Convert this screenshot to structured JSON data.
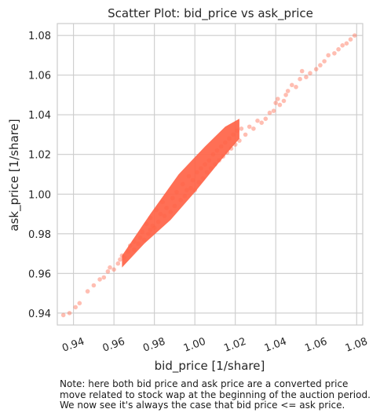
{
  "chart_data": {
    "type": "scatter",
    "title": "Scatter Plot: bid_price vs ask_price",
    "xlabel": "bid_price [1/share]",
    "ylabel": "ask_price [1/share]",
    "xlim": [
      0.932,
      1.083
    ],
    "ylim": [
      0.934,
      1.086
    ],
    "x_ticks": [
      "0.94",
      "0.96",
      "0.98",
      "1.00",
      "1.02",
      "1.04",
      "1.06",
      "1.08"
    ],
    "y_ticks": [
      "0.94",
      "0.96",
      "0.98",
      "1.00",
      "1.02",
      "1.04",
      "1.06",
      "1.08"
    ],
    "grid": true,
    "legend": "none",
    "point_color": "#ff6347",
    "points": [
      [
        0.935,
        0.939
      ],
      [
        0.938,
        0.94
      ],
      [
        0.941,
        0.943
      ],
      [
        0.943,
        0.945
      ],
      [
        0.947,
        0.951
      ],
      [
        0.95,
        0.954
      ],
      [
        0.953,
        0.957
      ],
      [
        0.955,
        0.958
      ],
      [
        0.957,
        0.961
      ],
      [
        0.958,
        0.963
      ],
      [
        0.96,
        0.962
      ],
      [
        0.962,
        0.965
      ],
      [
        0.963,
        0.967
      ],
      [
        0.964,
        0.969
      ],
      [
        0.965,
        0.968
      ],
      [
        0.967,
        0.971
      ],
      [
        0.968,
        0.974
      ],
      [
        0.97,
        0.972
      ],
      [
        0.97,
        0.976
      ],
      [
        0.972,
        0.975
      ],
      [
        0.973,
        0.978
      ],
      [
        0.974,
        0.981
      ],
      [
        0.975,
        0.977
      ],
      [
        0.976,
        0.985
      ],
      [
        0.977,
        0.98
      ],
      [
        0.978,
        0.982
      ],
      [
        0.978,
        0.988
      ],
      [
        0.979,
        0.984
      ],
      [
        0.98,
        0.983
      ],
      [
        0.981,
        0.992
      ],
      [
        0.982,
        0.986
      ],
      [
        0.983,
        0.99
      ],
      [
        0.984,
        0.996
      ],
      [
        0.985,
        0.989
      ],
      [
        0.986,
        0.993
      ],
      [
        0.988,
        0.991
      ],
      [
        0.989,
        0.998
      ],
      [
        0.99,
        0.994
      ],
      [
        0.991,
        1.001
      ],
      [
        0.993,
        0.997
      ],
      [
        0.994,
        1.005
      ],
      [
        0.995,
        0.999
      ],
      [
        0.996,
        1.002
      ],
      [
        0.997,
        1.009
      ],
      [
        0.998,
        1.003
      ],
      [
        0.999,
        1.007
      ],
      [
        1.0,
        1.002
      ],
      [
        1.001,
        1.011
      ],
      [
        1.002,
        1.006
      ],
      [
        1.003,
        1.013
      ],
      [
        1.004,
        1.008
      ],
      [
        1.005,
        1.015
      ],
      [
        1.006,
        1.011
      ],
      [
        1.007,
        1.017
      ],
      [
        1.008,
        1.013
      ],
      [
        1.009,
        1.02
      ],
      [
        1.01,
        1.015
      ],
      [
        1.011,
        1.022
      ],
      [
        1.012,
        1.017
      ],
      [
        1.013,
        1.024
      ],
      [
        1.014,
        1.019
      ],
      [
        1.015,
        1.026
      ],
      [
        1.016,
        1.021
      ],
      [
        1.017,
        1.028
      ],
      [
        1.018,
        1.023
      ],
      [
        1.019,
        1.03
      ],
      [
        1.02,
        1.025
      ],
      [
        1.021,
        1.032
      ],
      [
        1.022,
        1.027
      ],
      [
        1.023,
        1.033
      ],
      [
        1.025,
        1.03
      ],
      [
        1.027,
        1.034
      ],
      [
        1.029,
        1.033
      ],
      [
        1.031,
        1.037
      ],
      [
        1.033,
        1.036
      ],
      [
        1.035,
        1.038
      ],
      [
        1.037,
        1.041
      ],
      [
        1.039,
        1.042
      ],
      [
        1.04,
        1.046
      ],
      [
        1.041,
        1.048
      ],
      [
        1.042,
        1.045
      ],
      [
        1.044,
        1.047
      ],
      [
        1.045,
        1.05
      ],
      [
        1.046,
        1.052
      ],
      [
        1.048,
        1.055
      ],
      [
        1.05,
        1.054
      ],
      [
        1.052,
        1.058
      ],
      [
        1.053,
        1.062
      ],
      [
        1.055,
        1.059
      ],
      [
        1.057,
        1.061
      ],
      [
        1.06,
        1.063
      ],
      [
        1.062,
        1.065
      ],
      [
        1.064,
        1.067
      ],
      [
        1.066,
        1.07
      ],
      [
        1.069,
        1.071
      ],
      [
        1.071,
        1.073
      ],
      [
        1.073,
        1.075
      ],
      [
        1.075,
        1.076
      ],
      [
        1.077,
        1.078
      ],
      [
        1.079,
        1.08
      ]
    ]
  },
  "note": {
    "lines": [
      "Note: here both bid price and ask price are a converted price",
      "move related to stock wap at the beginning of the auction period.",
      "We now see it's always the case that bid price <= ask price."
    ]
  }
}
